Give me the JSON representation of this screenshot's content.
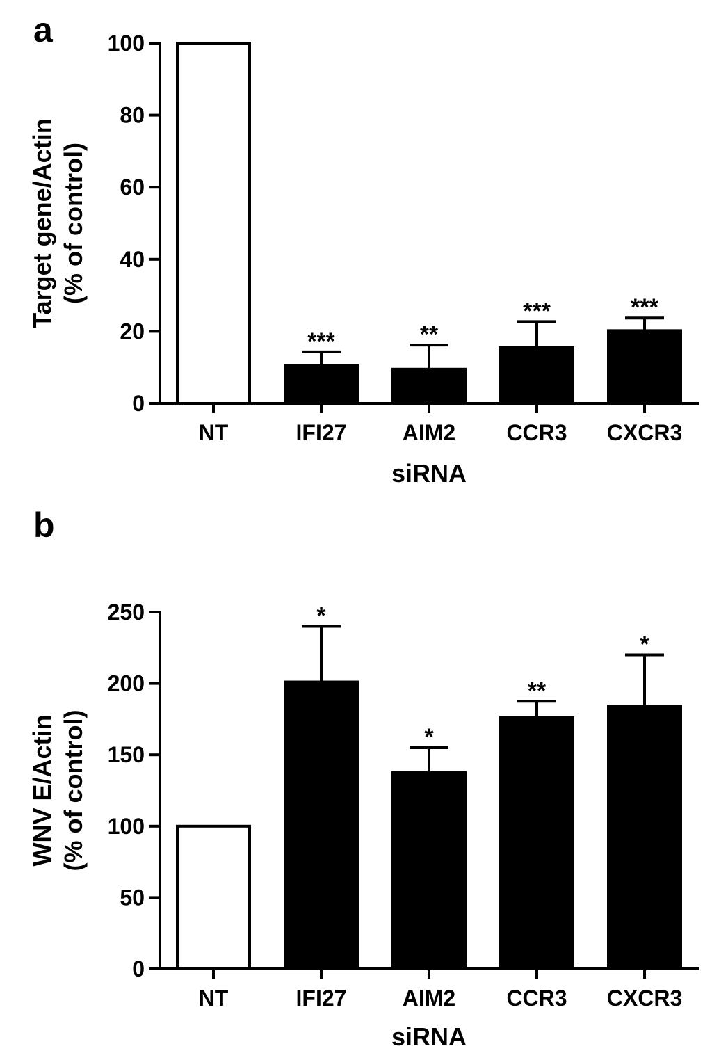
{
  "chart_data": [
    {
      "type": "bar",
      "panel_label": "a",
      "categories": [
        "NT",
        "IFI27",
        "AIM2",
        "CCR3",
        "CXCR3"
      ],
      "values": [
        100,
        10.5,
        9.5,
        15.5,
        20.2
      ],
      "error_upper": [
        null,
        14.3,
        16.2,
        22.7,
        23.7
      ],
      "significance": [
        "",
        "***",
        "**",
        "***",
        "***"
      ],
      "bar_fill": [
        "#ffffff",
        "#000000",
        "#000000",
        "#000000",
        "#000000"
      ],
      "xlabel": "siRNA",
      "ylabel_lines": [
        "Target gene/Actin",
        "(% of control)"
      ],
      "ylim": [
        0,
        100
      ],
      "yticks": [
        0,
        20,
        40,
        60,
        80,
        100
      ],
      "grid": false
    },
    {
      "type": "bar",
      "panel_label": "b",
      "categories": [
        "NT",
        "IFI27",
        "AIM2",
        "CCR3",
        "CXCR3"
      ],
      "values": [
        100,
        201,
        137.5,
        176,
        184
      ],
      "error_upper": [
        null,
        240,
        155,
        187.5,
        220
      ],
      "significance": [
        "",
        "*",
        "*",
        "**",
        "*"
      ],
      "bar_fill": [
        "#ffffff",
        "#000000",
        "#000000",
        "#000000",
        "#000000"
      ],
      "xlabel": "siRNA",
      "ylabel_lines": [
        "WNV E/Actin",
        "(% of control)"
      ],
      "ylim": [
        0,
        250
      ],
      "yticks": [
        0,
        50,
        100,
        150,
        200,
        250
      ],
      "grid": false
    }
  ]
}
